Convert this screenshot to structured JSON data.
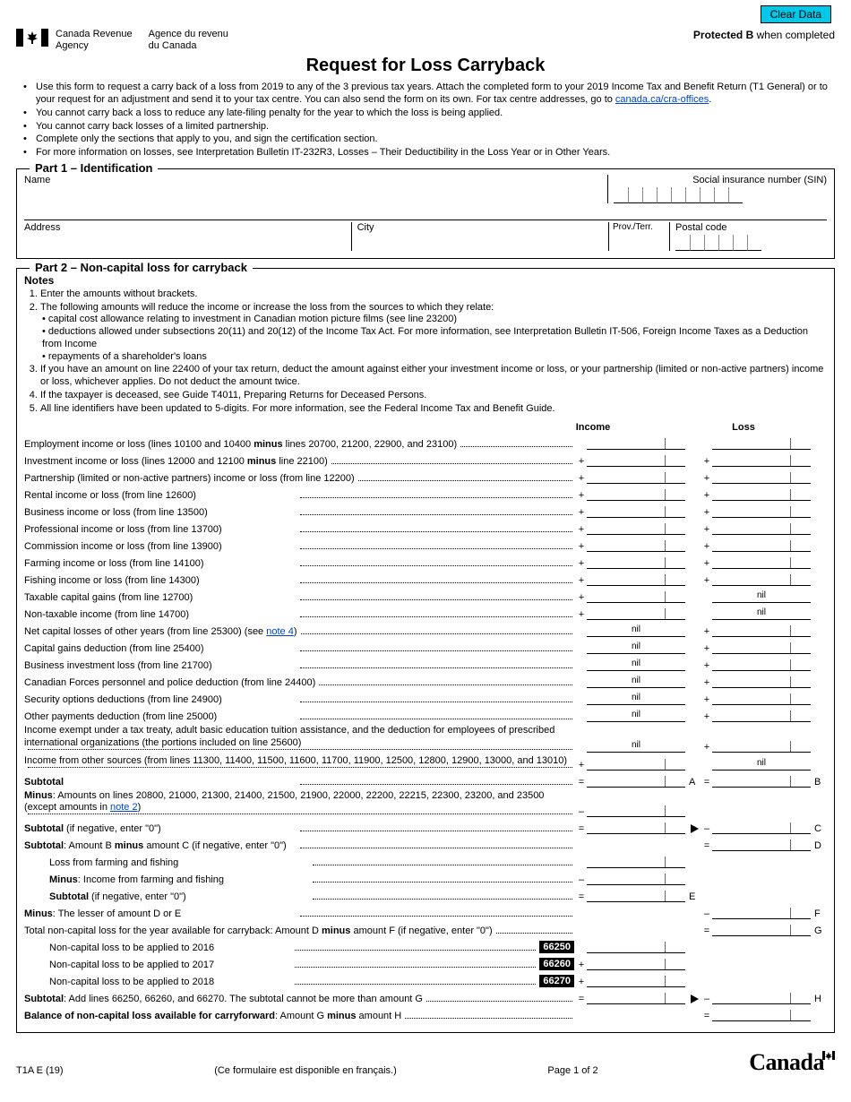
{
  "buttons": {
    "clear_data": "Clear Data"
  },
  "header": {
    "agency_en_l1": "Canada Revenue",
    "agency_en_l2": "Agency",
    "agency_fr_l1": "Agence du revenu",
    "agency_fr_l2": "du Canada",
    "protected_bold": "Protected B",
    "protected_rest": " when completed",
    "title": "Request for Loss Carryback"
  },
  "intro": {
    "b1a": "Use this form to request a carry back of a loss from 2019 to any of the 3 previous tax years. Attach the completed form to your 2019 Income Tax and Benefit Return (T1 General) or to your request for an adjustment and send it to your tax centre. You can also send the form on its own. For tax centre addresses, go to ",
    "b1_link": "canada.ca/cra-offices",
    "b2": "You cannot carry back a loss to reduce any late-filing penalty for the year to which the loss is being applied.",
    "b3": "You cannot carry back losses of a limited partnership.",
    "b4": "Complete only the sections that apply to you, and sign the certification section.",
    "b5": "For more information on losses, see Interpretation Bulletin IT-232R3, Losses – Their Deductibility in the Loss Year or in Other Years."
  },
  "part1": {
    "legend": "Part 1 – Identification",
    "name": "Name",
    "sin": "Social insurance number (SIN)",
    "address": "Address",
    "city": "City",
    "prov": "Prov./Terr.",
    "postal": "Postal code"
  },
  "part2": {
    "legend": "Part 2 – Non-capital loss for carryback",
    "notes_head": "Notes",
    "n1": "Enter the amounts without brackets.",
    "n2": "The following amounts will reduce the income or increase the loss from the sources to which they relate:",
    "n2a": "capital cost allowance relating to investment in Canadian motion picture films (see line 23200)",
    "n2b": "deductions allowed under subsections 20(11) and 20(12) of the Income Tax Act. For more information, see Interpretation Bulletin IT-506, Foreign Income Taxes as a Deduction from Income",
    "n2c": "repayments of a shareholder's loans",
    "n3": "If you have an amount on line 22400 of your tax return, deduct the amount against either your investment income or loss, or your partnership (limited or non-active partners) income or loss, whichever applies. Do not deduct the amount twice.",
    "n4": "If the taxpayer is deceased, see Guide T4011, Preparing Returns for Deceased Persons.",
    "n5": "All line identifiers have been updated to 5-digits. For more information, see the Federal Income Tax and Benefit Guide.",
    "col_income": "Income",
    "col_loss": "Loss",
    "lines": {
      "emp": "Employment income or loss (lines 10100 and 10400 <b>minus</b> lines 20700, 21200, 22900, and 23100)",
      "inv": "Investment income or loss (lines 12000 and 12100 <b>minus</b> line 22100)",
      "part": "Partnership (limited or non-active partners) income or loss (from line 12200)",
      "rent": "Rental income or loss (from line 12600)",
      "bus": "Business income or loss (from line 13500)",
      "prof": "Professional income or loss (from line 13700)",
      "comm": "Commission income or loss (from line 13900)",
      "farm": "Farming income or loss (from line 14100)",
      "fish": "Fishing income or loss (from line 14300)",
      "tcg": "Taxable capital gains (from line 12700)",
      "nti": "Non-taxable income (from line 14700)",
      "ncl": "Net capital losses of other years (from line 25300) (see ",
      "ncl_note": "note 4",
      "ncl_end": ")",
      "cgd": "Capital gains deduction (from line 25400)",
      "bil": "Business investment loss (from line 21700)",
      "cfp": "Canadian Forces personnel and police deduction (from line 24400)",
      "sod": "Security options deductions (from line 24900)",
      "opd": "Other payments deduction (from line 25000)",
      "exempt": "Income exempt under a tax treaty, adult basic education tuition assistance, and the deduction for employees of prescribed international organizations (the portions included on line 25600)",
      "other": "Income from other sources (from lines 11300, 11400, 11500, 11600, 11700, 11900, 12500, 12800, 12900, 13000, and 13010)",
      "subtotal": "Subtotal",
      "minus_list": "<b>Minus</b>: Amounts on lines 20800, 21000, 21300, 21400, 21500, 21900, 22000, 22200, 22215, 22300, 23200, and 23500 (except amounts in ",
      "minus_note": "note 2",
      "minus_end": ")",
      "sub_neg0": "<b>Subtotal</b> (if negative, enter \"0\")",
      "sub_bc": "<b>Subtotal</b>: Amount B <b>minus</b> amount C (if negative, enter \"0\")",
      "loss_ff": "Loss from farming and fishing",
      "minus_ff": "<b>Minus</b>: Income from farming and fishing",
      "sub_neg0b": "<b>Subtotal</b> (if negative, enter \"0\")",
      "minus_de": "<b>Minus</b>: The lesser of amount D or E",
      "total_ncl": "Total non-capital loss for the year available for carryback: Amount D <b>minus</b> amount F (if negative, enter \"0\")",
      "apply2016": "Non-capital loss to be applied to 2016",
      "apply2017": "Non-capital loss to be applied to 2017",
      "apply2018": "Non-capital loss to be applied to 2018",
      "sub_add": "<b>Subtotal</b>: Add lines 66250, 66260, and 66270. The subtotal cannot be more than amount G",
      "balance": "<b>Balance of non-capital loss available for carryforward</b>: Amount G <b>minus</b> amount H"
    },
    "codes": {
      "c2016": "66250",
      "c2017": "66260",
      "c2018": "66270"
    },
    "nil": "nil",
    "letters": {
      "A": "A",
      "B": "B",
      "C": "C",
      "D": "D",
      "E": "E",
      "F": "F",
      "G": "G",
      "H": "H"
    }
  },
  "footer": {
    "form_id": "T1A E (19)",
    "fr_note": "(Ce formulaire est disponible en français.)",
    "page": "Page 1 of 2",
    "wordmark": "Canada"
  },
  "colors": {
    "link": "#0046c8",
    "clear_btn_bg": "#00c8e8"
  }
}
